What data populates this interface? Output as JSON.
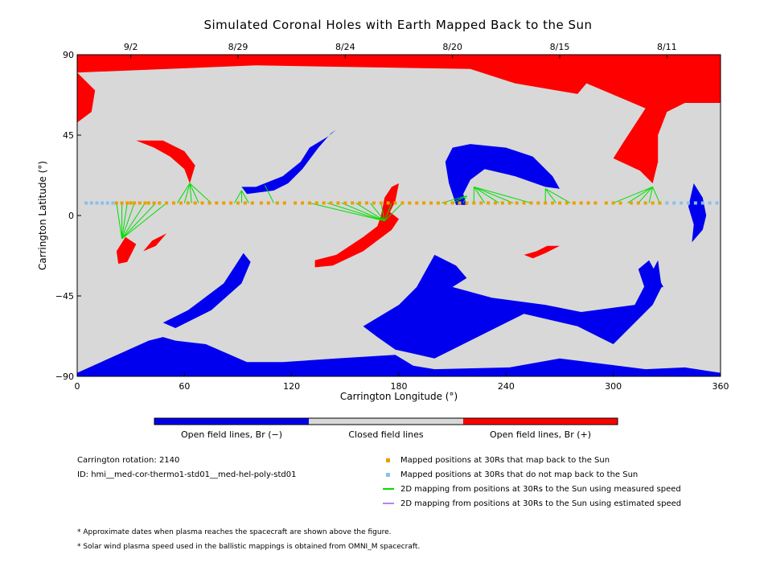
{
  "chart_data": {
    "type": "map",
    "title": "Simulated Coronal Holes with Earth Mapped Back to the Sun",
    "xlabel": "Carrington Longitude (°)",
    "ylabel": "Carrington Latitude (°)",
    "xlim": [
      0,
      360
    ],
    "ylim": [
      -90,
      90
    ],
    "x_ticks": [
      0,
      60,
      120,
      180,
      240,
      300,
      360
    ],
    "y_ticks": [
      -90,
      -45,
      0,
      45,
      90
    ],
    "top_axis_dates": [
      {
        "label": "9/2",
        "lon": 30
      },
      {
        "label": "8/29",
        "lon": 90
      },
      {
        "label": "8/24",
        "lon": 150
      },
      {
        "label": "8/20",
        "lon": 210
      },
      {
        "label": "8/15",
        "lon": 270
      },
      {
        "label": "8/11",
        "lon": 330
      }
    ],
    "colors": {
      "closed": "#d8d8d8",
      "open_negative": "#0000ee",
      "open_positive": "#ff0000",
      "mapped": "#e8a000",
      "not_mapped": "#88c0f0",
      "measured_line": "#00dd00",
      "estimated_line": "#b088e8"
    },
    "colorbar": {
      "labels": [
        "Open field lines, Br (−)",
        "Closed field lines",
        "Open field lines, Br (+)"
      ]
    },
    "regions": [
      {
        "polarity": "positive",
        "points": [
          [
            0,
            90
          ],
          [
            360,
            90
          ],
          [
            360,
            63
          ],
          [
            340,
            63
          ],
          [
            330,
            58
          ],
          [
            325,
            45
          ],
          [
            325,
            30
          ],
          [
            322,
            18
          ],
          [
            315,
            25
          ],
          [
            300,
            32
          ],
          [
            305,
            40
          ],
          [
            318,
            60
          ],
          [
            285,
            74
          ],
          [
            280,
            68
          ],
          [
            245,
            74
          ],
          [
            220,
            82
          ],
          [
            100,
            84
          ],
          [
            0,
            80
          ]
        ]
      },
      {
        "polarity": "positive",
        "points": [
          [
            0,
            80
          ],
          [
            10,
            70
          ],
          [
            8,
            58
          ],
          [
            0,
            52
          ]
        ]
      },
      {
        "polarity": "negative",
        "points": [
          [
            0,
            -90
          ],
          [
            360,
            -90
          ],
          [
            360,
            -88
          ],
          [
            340,
            -85
          ],
          [
            318,
            -86
          ],
          [
            270,
            -80
          ],
          [
            242,
            -85
          ],
          [
            200,
            -86
          ],
          [
            188,
            -84
          ],
          [
            178,
            -78
          ],
          [
            145,
            -80
          ],
          [
            115,
            -82
          ],
          [
            95,
            -82
          ],
          [
            72,
            -72
          ],
          [
            55,
            -70
          ],
          [
            48,
            -68
          ],
          [
            40,
            -70
          ],
          [
            0,
            -88
          ]
        ]
      },
      {
        "polarity": "negative",
        "points": [
          [
            210,
            -40
          ],
          [
            218,
            -35
          ],
          [
            212,
            -28
          ],
          [
            200,
            -22
          ],
          [
            190,
            -40
          ],
          [
            185,
            -45
          ],
          [
            180,
            -50
          ],
          [
            160,
            -62
          ],
          [
            168,
            -68
          ],
          [
            178,
            -75
          ],
          [
            200,
            -80
          ],
          [
            250,
            -55
          ],
          [
            280,
            -62
          ],
          [
            300,
            -72
          ],
          [
            322,
            -50
          ],
          [
            327,
            -40
          ],
          [
            325,
            -25
          ],
          [
            312,
            -50
          ],
          [
            282,
            -54
          ],
          [
            262,
            -50
          ],
          [
            232,
            -46
          ]
        ]
      },
      {
        "polarity": "negative",
        "points": [
          [
            48,
            -60
          ],
          [
            62,
            -53
          ],
          [
            82,
            -38
          ],
          [
            93,
            -21
          ],
          [
            97,
            -26
          ],
          [
            92,
            -38
          ],
          [
            75,
            -53
          ],
          [
            55,
            -63
          ]
        ]
      },
      {
        "polarity": "negative",
        "points": [
          [
            92,
            16
          ],
          [
            95,
            12
          ],
          [
            110,
            14
          ],
          [
            118,
            18
          ],
          [
            126,
            26
          ],
          [
            135,
            38
          ],
          [
            142,
            46
          ],
          [
            145,
            48
          ],
          [
            140,
            44
          ],
          [
            130,
            38
          ],
          [
            125,
            30
          ],
          [
            115,
            22
          ],
          [
            100,
            16
          ]
        ]
      },
      {
        "polarity": "negative",
        "points": [
          [
            210,
            38
          ],
          [
            220,
            40
          ],
          [
            240,
            38
          ],
          [
            255,
            33
          ],
          [
            266,
            22
          ],
          [
            270,
            15
          ],
          [
            262,
            16
          ],
          [
            245,
            22
          ],
          [
            228,
            26
          ],
          [
            220,
            20
          ],
          [
            216,
            12
          ],
          [
            218,
            6
          ],
          [
            212,
            6
          ],
          [
            208,
            18
          ],
          [
            206,
            30
          ]
        ]
      },
      {
        "polarity": "negative",
        "points": [
          [
            320,
            -25
          ],
          [
            328,
            -40
          ],
          [
            318,
            -42
          ],
          [
            314,
            -30
          ]
        ]
      },
      {
        "polarity": "negative",
        "points": [
          [
            345,
            18
          ],
          [
            350,
            10
          ],
          [
            352,
            0
          ],
          [
            350,
            -8
          ],
          [
            344,
            -15
          ],
          [
            345,
            -5
          ],
          [
            342,
            5
          ]
        ]
      },
      {
        "polarity": "positive",
        "points": [
          [
            33,
            42
          ],
          [
            43,
            38
          ],
          [
            52,
            33
          ],
          [
            60,
            26
          ],
          [
            63,
            18
          ],
          [
            66,
            28
          ],
          [
            60,
            36
          ],
          [
            48,
            42
          ]
        ]
      },
      {
        "polarity": "positive",
        "points": [
          [
            22,
            -20
          ],
          [
            27,
            -12
          ],
          [
            33,
            -16
          ],
          [
            28,
            -26
          ],
          [
            23,
            -27
          ]
        ]
      },
      {
        "polarity": "positive",
        "points": [
          [
            42,
            -14
          ],
          [
            50,
            -10
          ],
          [
            44,
            -17
          ],
          [
            37,
            -20
          ]
        ]
      },
      {
        "polarity": "positive",
        "points": [
          [
            133,
            -25
          ],
          [
            145,
            -22
          ],
          [
            160,
            -12
          ],
          [
            168,
            -6
          ],
          [
            170,
            0
          ],
          [
            172,
            10
          ],
          [
            176,
            16
          ],
          [
            180,
            18
          ],
          [
            178,
            8
          ],
          [
            175,
            2
          ],
          [
            180,
            -2
          ],
          [
            176,
            -8
          ],
          [
            160,
            -20
          ],
          [
            143,
            -28
          ],
          [
            133,
            -29
          ]
        ]
      },
      {
        "polarity": "positive",
        "points": [
          [
            250,
            -22
          ],
          [
            257,
            -20
          ],
          [
            263,
            -17
          ],
          [
            270,
            -17
          ],
          [
            262,
            -21
          ],
          [
            255,
            -24
          ]
        ]
      }
    ],
    "mapped_points": {
      "lat": 7,
      "lons": [
        22,
        25,
        28,
        30,
        32,
        35,
        38,
        40,
        43,
        46,
        50,
        54,
        58,
        62,
        66,
        70,
        74,
        78,
        82,
        86,
        90,
        94,
        98,
        103,
        107,
        112,
        116,
        122,
        126,
        130,
        134,
        138,
        142,
        146,
        150,
        154,
        158,
        162,
        166,
        170,
        174,
        178,
        182,
        186,
        190,
        194,
        198,
        202,
        206,
        210,
        214,
        218,
        222,
        226,
        230,
        234,
        238,
        242,
        246,
        250,
        254,
        258,
        262,
        266,
        270,
        274,
        278,
        282,
        286,
        290,
        296,
        300,
        304,
        310,
        314,
        318,
        322,
        326
      ]
    },
    "unmapped_points": {
      "lat": 7,
      "lons": [
        5,
        8,
        11,
        14,
        17,
        20,
        330,
        334,
        338,
        342,
        346,
        350,
        354,
        358
      ]
    },
    "measured_mappings": [
      {
        "from": [
          22,
          7
        ],
        "to": [
          25,
          -13
        ]
      },
      {
        "from": [
          25,
          7
        ],
        "to": [
          25,
          -13
        ]
      },
      {
        "from": [
          28,
          7
        ],
        "to": [
          25,
          -13
        ]
      },
      {
        "from": [
          32,
          7
        ],
        "to": [
          25,
          -13
        ]
      },
      {
        "from": [
          38,
          7
        ],
        "to": [
          25,
          -13
        ]
      },
      {
        "from": [
          44,
          7
        ],
        "to": [
          25,
          -13
        ]
      },
      {
        "from": [
          50,
          7
        ],
        "to": [
          25,
          -13
        ]
      },
      {
        "from": [
          56,
          7
        ],
        "to": [
          63,
          18
        ]
      },
      {
        "from": [
          60,
          7
        ],
        "to": [
          63,
          18
        ]
      },
      {
        "from": [
          64,
          7
        ],
        "to": [
          63,
          18
        ]
      },
      {
        "from": [
          68,
          7
        ],
        "to": [
          63,
          18
        ]
      },
      {
        "from": [
          75,
          7
        ],
        "to": [
          63,
          18
        ]
      },
      {
        "from": [
          88,
          7
        ],
        "to": [
          92,
          14
        ]
      },
      {
        "from": [
          92,
          7
        ],
        "to": [
          92,
          14
        ]
      },
      {
        "from": [
          96,
          7
        ],
        "to": [
          92,
          14
        ]
      },
      {
        "from": [
          110,
          7
        ],
        "to": [
          105,
          17
        ]
      },
      {
        "from": [
          130,
          7
        ],
        "to": [
          172,
          -3
        ]
      },
      {
        "from": [
          140,
          7
        ],
        "to": [
          172,
          -3
        ]
      },
      {
        "from": [
          148,
          7
        ],
        "to": [
          172,
          -3
        ]
      },
      {
        "from": [
          156,
          7
        ],
        "to": [
          172,
          -3
        ]
      },
      {
        "from": [
          164,
          7
        ],
        "to": [
          172,
          -3
        ]
      },
      {
        "from": [
          170,
          7
        ],
        "to": [
          172,
          -3
        ]
      },
      {
        "from": [
          176,
          7
        ],
        "to": [
          172,
          -3
        ]
      },
      {
        "from": [
          182,
          7
        ],
        "to": [
          172,
          -3
        ]
      },
      {
        "from": [
          204,
          7
        ],
        "to": [
          218,
          11
        ]
      },
      {
        "from": [
          210,
          7
        ],
        "to": [
          218,
          11
        ]
      },
      {
        "from": [
          216,
          7
        ],
        "to": [
          218,
          11
        ]
      },
      {
        "from": [
          222,
          7
        ],
        "to": [
          222,
          16
        ]
      },
      {
        "from": [
          228,
          7
        ],
        "to": [
          222,
          16
        ]
      },
      {
        "from": [
          236,
          7
        ],
        "to": [
          222,
          16
        ]
      },
      {
        "from": [
          244,
          7
        ],
        "to": [
          222,
          16
        ]
      },
      {
        "from": [
          254,
          7
        ],
        "to": [
          222,
          16
        ]
      },
      {
        "from": [
          262,
          7
        ],
        "to": [
          262,
          15
        ]
      },
      {
        "from": [
          268,
          7
        ],
        "to": [
          262,
          15
        ]
      },
      {
        "from": [
          276,
          7
        ],
        "to": [
          262,
          15
        ]
      },
      {
        "from": [
          300,
          7
        ],
        "to": [
          322,
          16
        ]
      },
      {
        "from": [
          308,
          7
        ],
        "to": [
          322,
          16
        ]
      },
      {
        "from": [
          314,
          7
        ],
        "to": [
          322,
          16
        ]
      },
      {
        "from": [
          320,
          7
        ],
        "to": [
          322,
          16
        ]
      },
      {
        "from": [
          326,
          7
        ],
        "to": [
          322,
          16
        ]
      }
    ],
    "legend": [
      {
        "marker": "square",
        "color": "#e8a000",
        "label": "Mapped positions at 30Rs that map back to the Sun"
      },
      {
        "marker": "square",
        "color": "#88c0f0",
        "label": "Mapped positions at 30Rs that do not map back to the Sun"
      },
      {
        "marker": "line",
        "color": "#00dd00",
        "label": "2D mapping from positions at 30Rs to the Sun using measured speed"
      },
      {
        "marker": "line",
        "color": "#b088e8",
        "label": "2D mapping from positions at 30Rs to the Sun using estimated speed"
      }
    ]
  },
  "info": {
    "rotation_label": "Carrington rotation: 2140",
    "id_label": "ID: hmi__med-cor-thermo1-std01__med-hel-poly-std01"
  },
  "footnotes": [
    "* Approximate dates when plasma reaches the spacecraft are shown above the figure.",
    "* Solar wind plasma speed used in the ballistic mappings is obtained from OMNI_M spacecraft."
  ]
}
